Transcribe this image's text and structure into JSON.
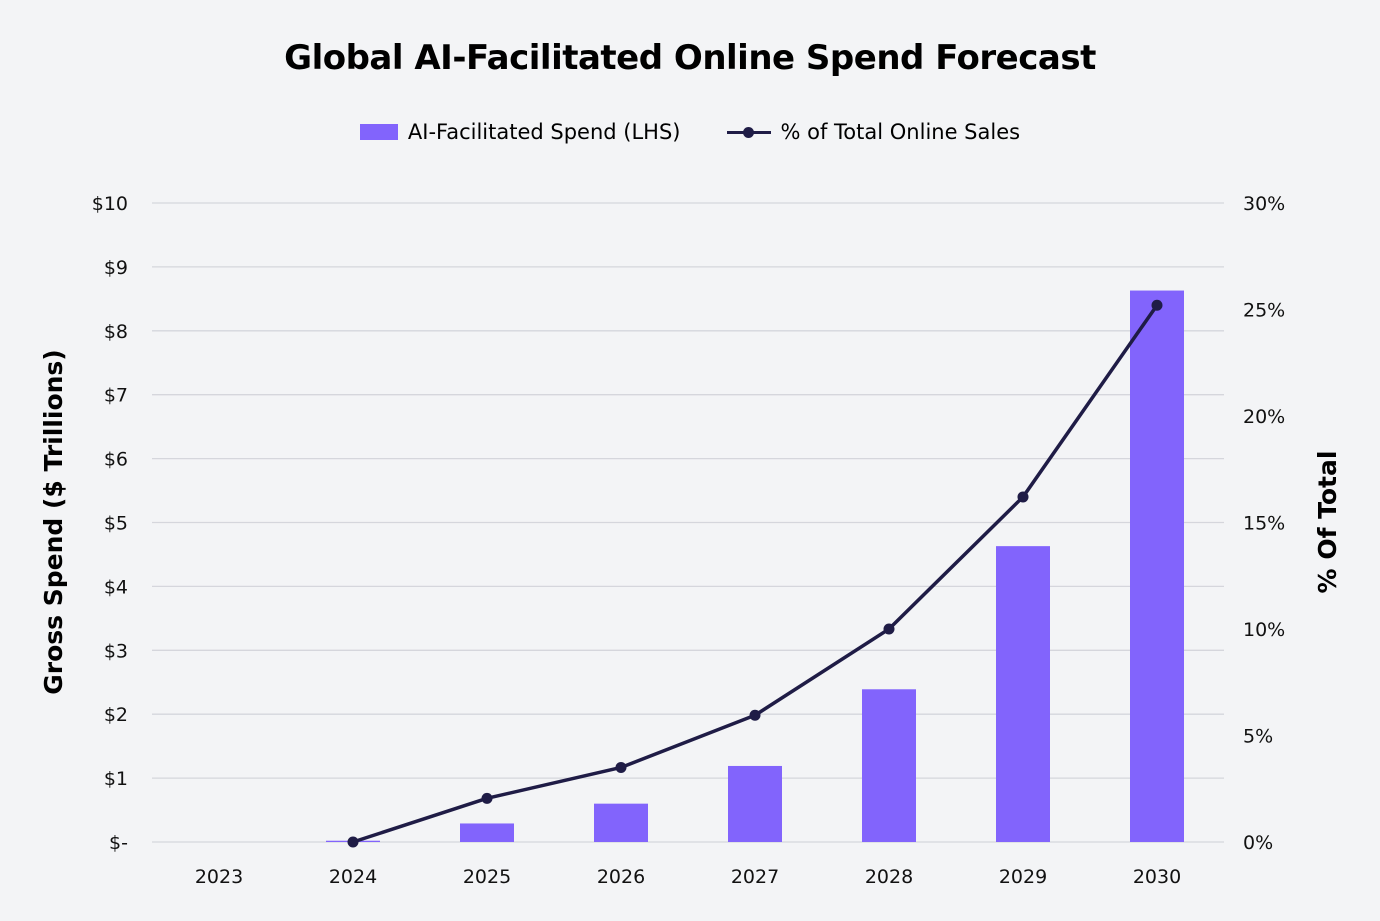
{
  "chart_data": {
    "type": "bar",
    "title": "Global AI-Facilitated Online Spend Forecast",
    "categories": [
      "2023",
      "2024",
      "2025",
      "2026",
      "2027",
      "2028",
      "2029",
      "2030"
    ],
    "series": [
      {
        "name": "AI-Facilitated Spend (LHS)",
        "type": "bar",
        "axis": "left",
        "color": "#8264fc",
        "values": [
          0,
          0.02,
          0.29,
          0.6,
          1.19,
          2.39,
          4.63,
          8.63
        ]
      },
      {
        "name": "% of Total Online Sales",
        "type": "line",
        "axis": "right",
        "color": "#1f1c46",
        "values": [
          null,
          0.0,
          2.05,
          3.5,
          5.95,
          10.0,
          16.2,
          25.2
        ]
      }
    ],
    "ylabel": "Gross Spend ($ Trillions)",
    "y2label": "% Of Total",
    "ylim": [
      0,
      10
    ],
    "y2lim": [
      0,
      30
    ],
    "yticks": [
      "$-",
      "$1",
      "$2",
      "$3",
      "$4",
      "$5",
      "$6",
      "$7",
      "$8",
      "$9",
      "$10"
    ],
    "y2ticks": [
      "0%",
      "5%",
      "10%",
      "15%",
      "20%",
      "25%",
      "30%"
    ],
    "grid": true,
    "legend": "top-center"
  }
}
